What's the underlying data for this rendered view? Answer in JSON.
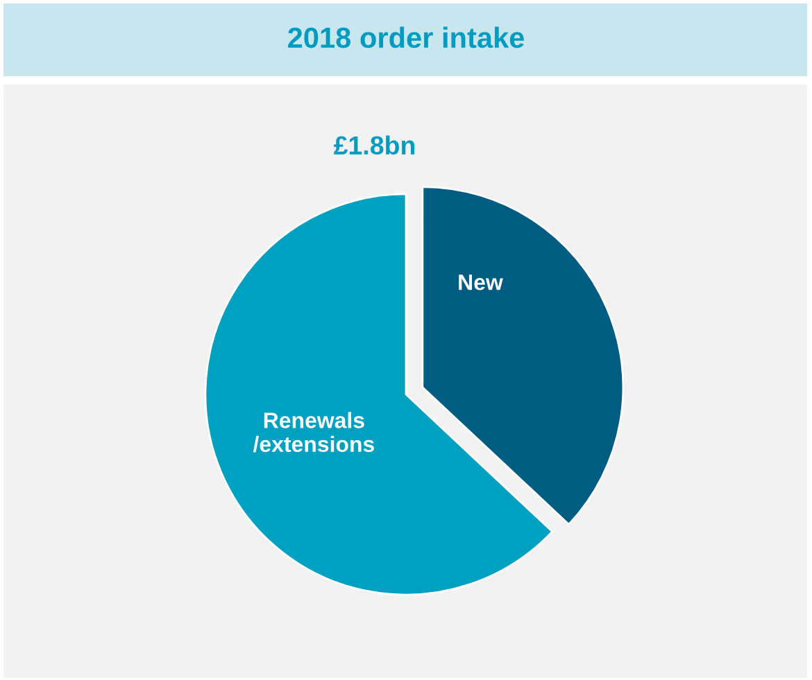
{
  "chart_data": {
    "type": "pie",
    "title": "2018 order intake",
    "subtitle": "£1.8bn",
    "categories": [
      "New",
      "Renewals\n/extensions"
    ],
    "values": [
      37,
      63
    ],
    "colors": [
      "#005c80",
      "#00a0c0"
    ]
  }
}
